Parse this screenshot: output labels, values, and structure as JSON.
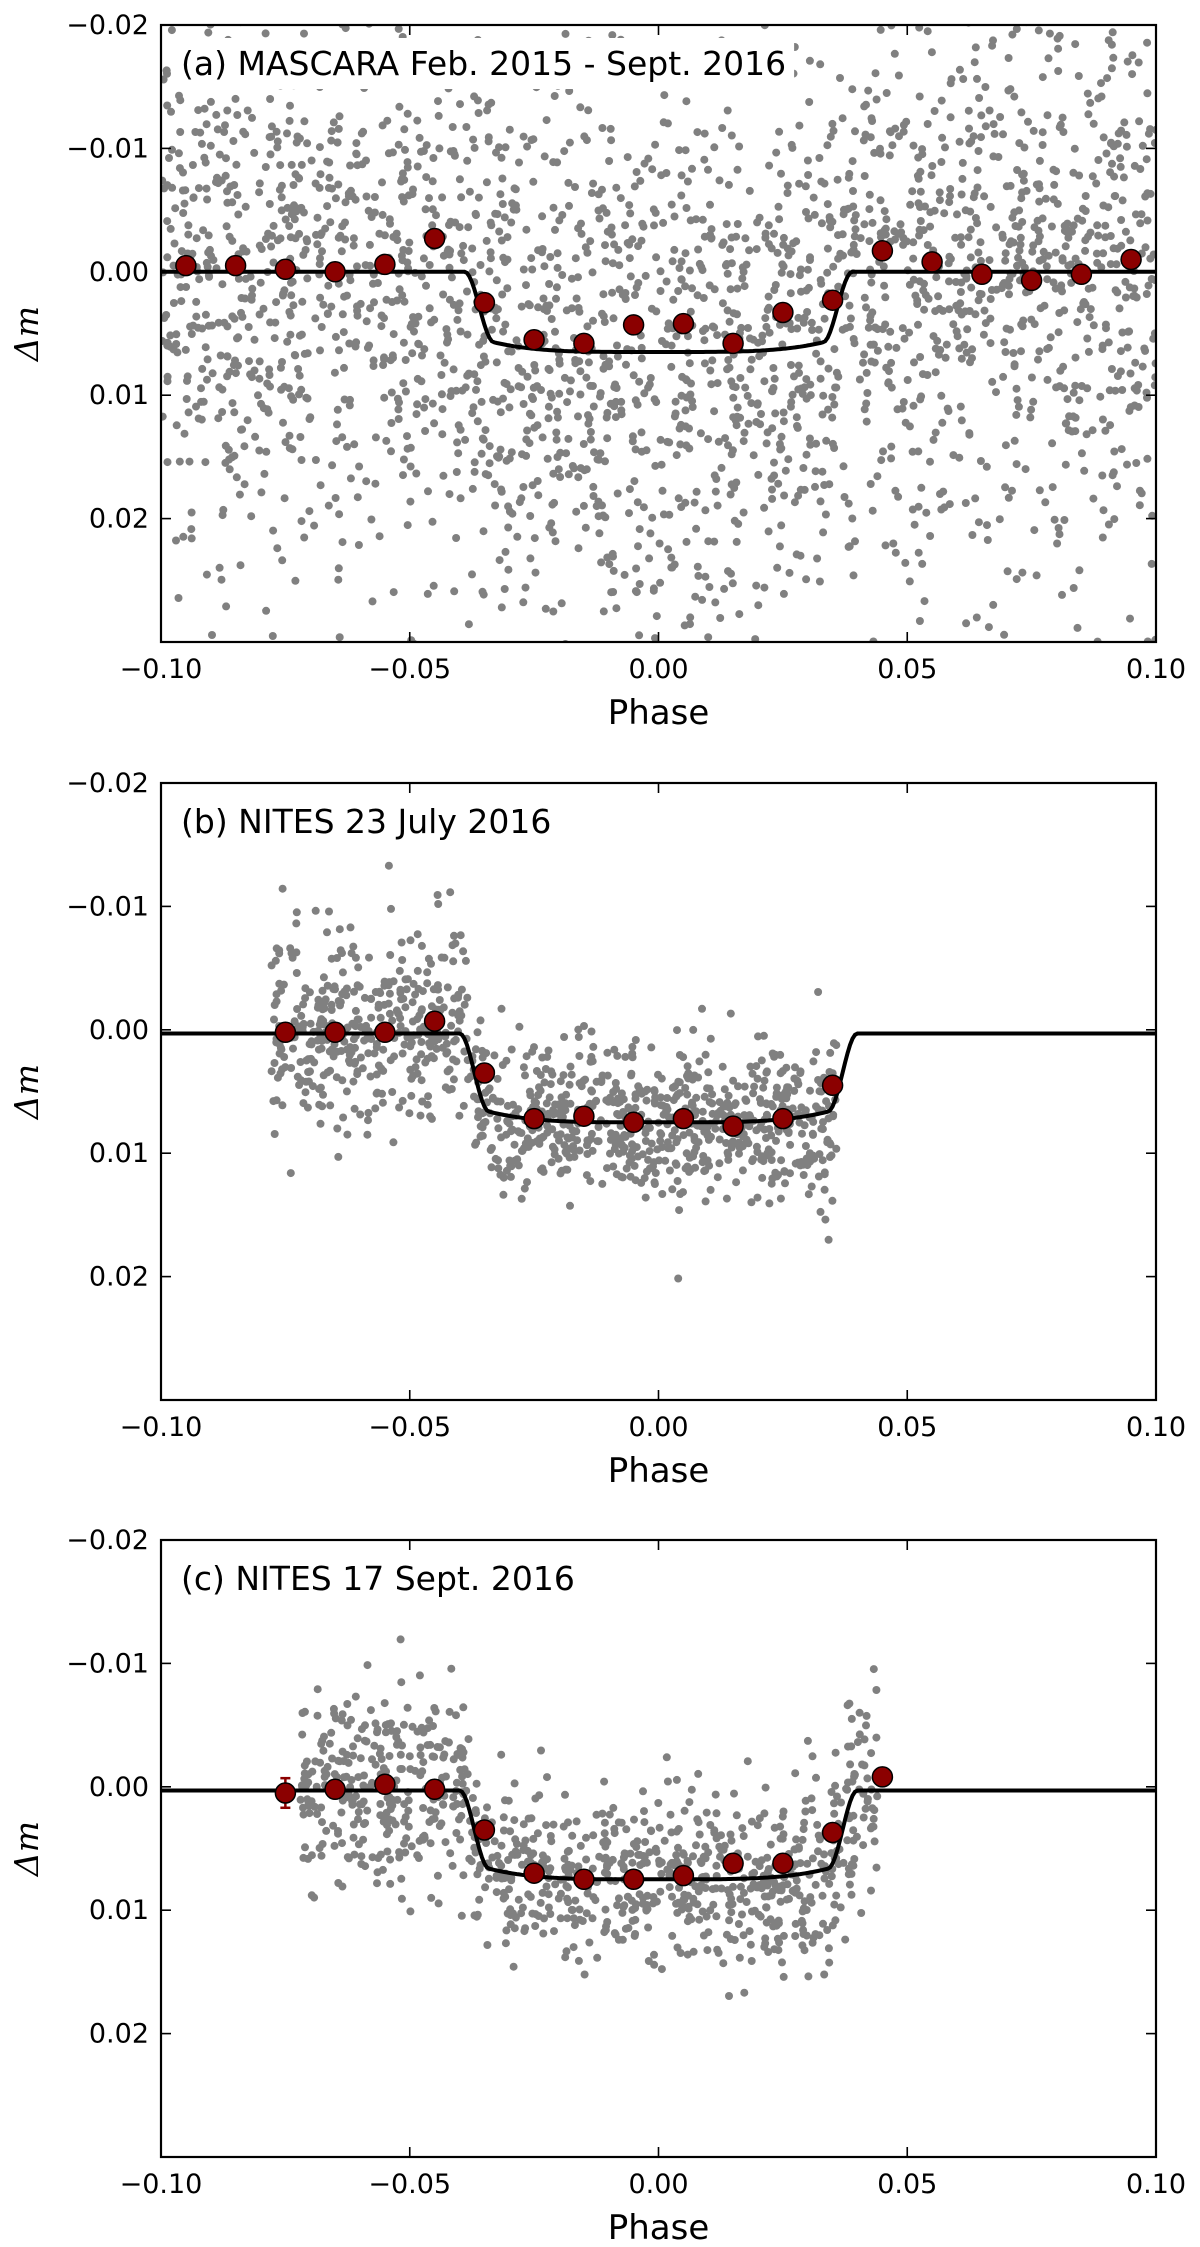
{
  "chart_data": [
    {
      "type": "scatter",
      "title": "(a) MASCARA Feb. 2015 - Sept. 2016",
      "xlabel": "Phase",
      "ylabel": "Δm",
      "xlim": [
        -0.1,
        0.1
      ],
      "ylim": [
        -0.02,
        0.03
      ],
      "y_inverted": true,
      "xticks": [
        "−0.10",
        "−0.05",
        "0.00",
        "0.05",
        "0.10"
      ],
      "xtick_values": [
        -0.1,
        -0.05,
        0.0,
        0.05,
        0.1
      ],
      "yticks": [
        "−0.02",
        "−0.01",
        "0.00",
        "0.01",
        "0.02"
      ],
      "ytick_values": [
        -0.02,
        -0.01,
        0.0,
        0.01,
        0.02
      ],
      "raw_data": {
        "x_range": [
          -0.1,
          0.1
        ],
        "scatter_sigma": 0.011,
        "count": 2600
      },
      "model": {
        "baseline": 0.0,
        "depth": 0.0065,
        "t14_half": 0.039,
        "t23_half": 0.033
      },
      "binned": {
        "x": [
          -0.095,
          -0.085,
          -0.075,
          -0.065,
          -0.055,
          -0.045,
          -0.035,
          -0.025,
          -0.015,
          -0.005,
          0.005,
          0.015,
          0.025,
          0.035,
          0.045,
          0.055,
          0.065,
          0.075,
          0.085,
          0.095
        ],
        "y": [
          -0.0005,
          -0.0005,
          -0.0002,
          0.0,
          -0.0006,
          -0.0027,
          0.0025,
          0.0055,
          0.0058,
          0.0043,
          0.0042,
          0.0058,
          0.0033,
          0.0023,
          -0.0017,
          -0.0008,
          0.0002,
          0.0007,
          0.0002,
          -0.001
        ]
      }
    },
    {
      "type": "scatter",
      "title": "(b) NITES 23 July 2016",
      "xlabel": "Phase",
      "ylabel": "Δm",
      "xlim": [
        -0.1,
        0.1
      ],
      "ylim": [
        -0.02,
        0.03
      ],
      "y_inverted": true,
      "xticks": [
        "−0.10",
        "−0.05",
        "0.00",
        "0.05",
        "0.10"
      ],
      "xtick_values": [
        -0.1,
        -0.05,
        0.0,
        0.05,
        0.1
      ],
      "yticks": [
        "−0.02",
        "−0.01",
        "0.00",
        "0.01",
        "0.02"
      ],
      "ytick_values": [
        -0.02,
        -0.01,
        0.0,
        0.01,
        0.02
      ],
      "raw_data": {
        "x_range": [
          -0.078,
          0.036
        ],
        "scatter_sigma": 0.0032,
        "count": 1100
      },
      "model": {
        "baseline": 0.0003,
        "depth": 0.0072,
        "t14_half": 0.04,
        "t23_half": 0.034
      },
      "binned": {
        "x": [
          -0.075,
          -0.065,
          -0.055,
          -0.045,
          -0.035,
          -0.025,
          -0.015,
          -0.005,
          0.005,
          0.015,
          0.025,
          0.035
        ],
        "y": [
          0.0002,
          0.0002,
          0.0002,
          -0.0007,
          0.0035,
          0.0072,
          0.007,
          0.0075,
          0.0072,
          0.0078,
          0.0072,
          0.0045
        ]
      }
    },
    {
      "type": "scatter",
      "title": "(c) NITES 17 Sept. 2016",
      "xlabel": "Phase",
      "ylabel": "Δm",
      "xlim": [
        -0.1,
        0.1
      ],
      "ylim": [
        -0.02,
        0.03
      ],
      "y_inverted": true,
      "xticks": [
        "−0.10",
        "−0.05",
        "0.00",
        "0.05",
        "0.10"
      ],
      "xtick_values": [
        -0.1,
        -0.05,
        0.0,
        0.05,
        0.1
      ],
      "yticks": [
        "−0.02",
        "−0.01",
        "0.00",
        "0.01",
        "0.02"
      ],
      "ytick_values": [
        -0.02,
        -0.01,
        0.0,
        0.01,
        0.02
      ],
      "raw_data": {
        "x_range": [
          -0.072,
          0.044
        ],
        "scatter_sigma": 0.0035,
        "count": 1000
      },
      "model": {
        "baseline": 0.0003,
        "depth": 0.0072,
        "t14_half": 0.04,
        "t23_half": 0.034
      },
      "binned": {
        "x": [
          -0.075,
          -0.065,
          -0.055,
          -0.045,
          -0.035,
          -0.025,
          -0.015,
          -0.005,
          0.005,
          0.015,
          0.025,
          0.035,
          0.045
        ],
        "y": [
          0.0005,
          0.0002,
          -0.0002,
          0.0002,
          0.0035,
          0.007,
          0.0075,
          0.0075,
          0.0072,
          0.0062,
          0.0062,
          0.0037,
          -0.0008
        ],
        "yerr_first": 0.0012
      }
    }
  ]
}
